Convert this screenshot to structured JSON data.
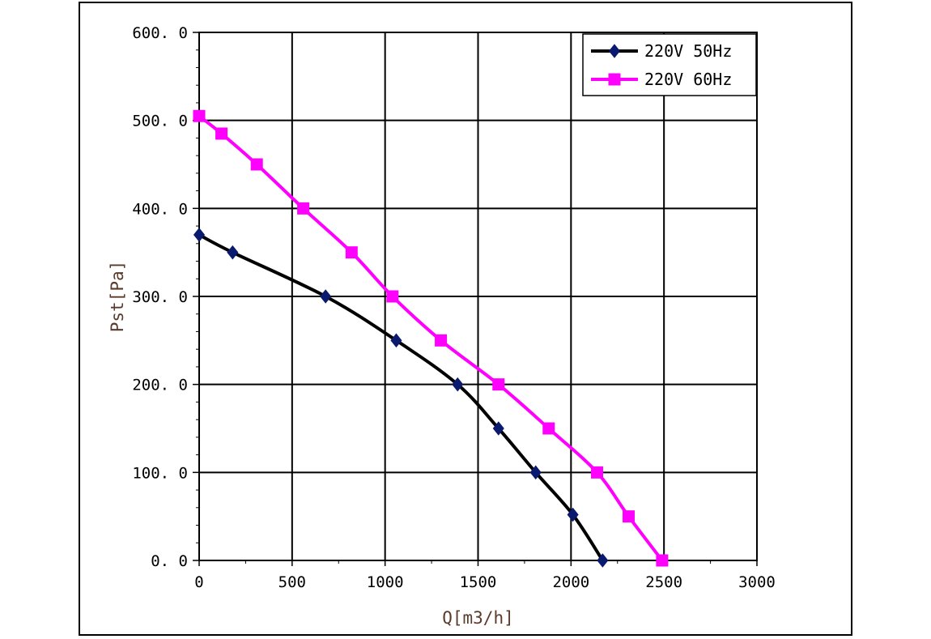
{
  "chart_data": {
    "type": "line",
    "title": "",
    "xlabel": "Q[m3/h]",
    "ylabel": "Pst[Pa]",
    "xlim": [
      0,
      3000
    ],
    "ylim": [
      0,
      600
    ],
    "x_ticks": [
      "0",
      "500",
      "1000",
      "1500",
      "2000",
      "2500",
      "3000"
    ],
    "y_ticks": [
      "0. 0",
      "100. 0",
      "200. 0",
      "300. 0",
      "400. 0",
      "500. 0",
      "600. 0"
    ],
    "grid": true,
    "legend_position": "top-right",
    "series": [
      {
        "name": "220V  50Hz",
        "color": "#000000",
        "marker": "diamond",
        "marker_color": "#0a1a6e",
        "x": [
          0,
          180,
          680,
          1060,
          1390,
          1610,
          1810,
          2010,
          2170
        ],
        "y": [
          370,
          350,
          300,
          250,
          200,
          150,
          100,
          52,
          0
        ]
      },
      {
        "name": "220V  60Hz",
        "color": "#ff00ff",
        "marker": "square",
        "marker_color": "#ff00ff",
        "x": [
          0,
          120,
          310,
          560,
          820,
          1040,
          1300,
          1610,
          1880,
          2140,
          2310,
          2490
        ],
        "y": [
          505,
          485,
          450,
          400,
          350,
          300,
          250,
          200,
          150,
          100,
          50,
          0
        ]
      }
    ]
  }
}
